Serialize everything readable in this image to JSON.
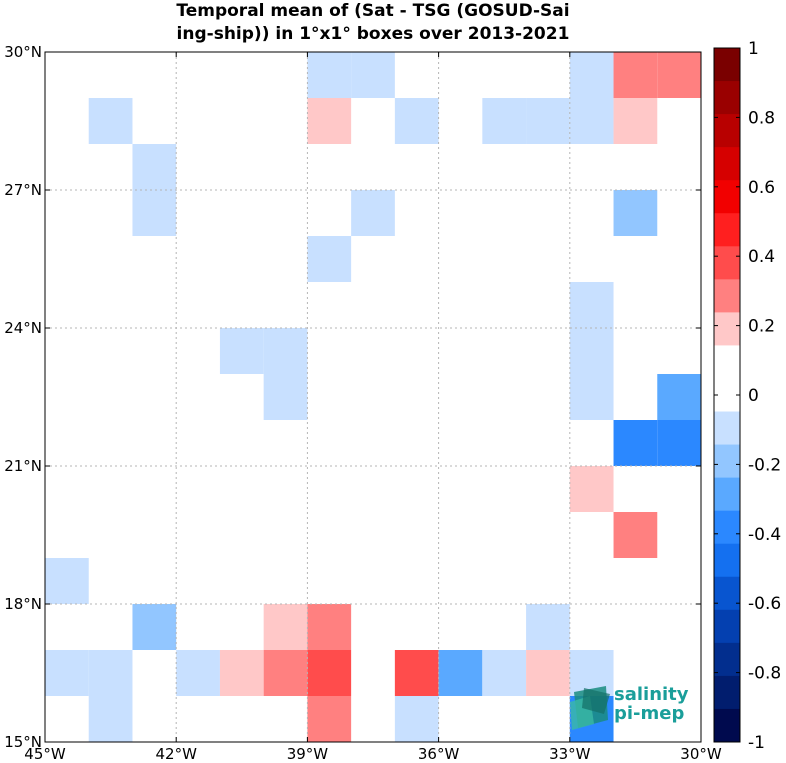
{
  "chart_data": {
    "type": "heatmap",
    "title_line1": "Temporal mean of (Sat - TSG (GOSUD-Sai",
    "title_line2": "ing-ship)) in 1°x1° boxes over 2013-2021",
    "lon_range": [
      -45,
      -30
    ],
    "lat_range": [
      15,
      30
    ],
    "x_ticks": [
      {
        "value": -45,
        "label": "45°W"
      },
      {
        "value": -42,
        "label": "42°W"
      },
      {
        "value": -39,
        "label": "39°W"
      },
      {
        "value": -36,
        "label": "36°W"
      },
      {
        "value": -33,
        "label": "33°W"
      },
      {
        "value": -30,
        "label": "30°W"
      }
    ],
    "y_ticks": [
      {
        "value": 15,
        "label": "15°N"
      },
      {
        "value": 18,
        "label": "18°N"
      },
      {
        "value": 21,
        "label": "21°N"
      },
      {
        "value": 24,
        "label": "24°N"
      },
      {
        "value": 27,
        "label": "27°N"
      },
      {
        "value": 30,
        "label": "30°N"
      }
    ],
    "grid": true,
    "colorbar": {
      "range": [
        -1,
        1
      ],
      "step": 0.1,
      "tick_labels": [
        "1",
        "0.8",
        "0.6",
        "0.4",
        "0.2",
        "0",
        "-0.2",
        "-0.4",
        "-0.6",
        "-0.8",
        "-1"
      ],
      "colors": [
        "#7a0000",
        "#9a0000",
        "#b80000",
        "#d60000",
        "#f20000",
        "#ff1f1f",
        "#ff4c4c",
        "#ff8080",
        "#ffc8c8",
        "#ffffff",
        "#ffffff",
        "#c8e0ff",
        "#92c6ff",
        "#5aa9ff",
        "#2b88ff",
        "#1470f0",
        "#0855d0",
        "#0440b0",
        "#022e8e",
        "#011d6e",
        "#000a4e"
      ]
    },
    "cells": [
      {
        "lon": -39,
        "lat": 29,
        "value": -0.12
      },
      {
        "lon": -38,
        "lat": 29,
        "value": -0.12
      },
      {
        "lon": -33,
        "lat": 29,
        "value": -0.12
      },
      {
        "lon": -32,
        "lat": 29,
        "value": 0.25
      },
      {
        "lon": -31,
        "lat": 29,
        "value": 0.25
      },
      {
        "lon": -44,
        "lat": 28,
        "value": -0.12
      },
      {
        "lon": -39,
        "lat": 28,
        "value": 0.15
      },
      {
        "lon": -37,
        "lat": 28,
        "value": -0.12
      },
      {
        "lon": -35,
        "lat": 28,
        "value": -0.12
      },
      {
        "lon": -34,
        "lat": 28,
        "value": -0.12
      },
      {
        "lon": -33,
        "lat": 28,
        "value": -0.12
      },
      {
        "lon": -32,
        "lat": 28,
        "value": 0.15
      },
      {
        "lon": -43,
        "lat": 27,
        "value": -0.12
      },
      {
        "lon": -43,
        "lat": 26,
        "value": -0.12
      },
      {
        "lon": -38,
        "lat": 26,
        "value": -0.12
      },
      {
        "lon": -32,
        "lat": 26,
        "value": -0.25
      },
      {
        "lon": -39,
        "lat": 25,
        "value": -0.12
      },
      {
        "lon": -33,
        "lat": 24,
        "value": -0.12
      },
      {
        "lon": -41,
        "lat": 23,
        "value": -0.12
      },
      {
        "lon": -40,
        "lat": 23,
        "value": -0.12
      },
      {
        "lon": -33,
        "lat": 23,
        "value": -0.12
      },
      {
        "lon": -40,
        "lat": 22,
        "value": -0.12
      },
      {
        "lon": -33,
        "lat": 22,
        "value": -0.12
      },
      {
        "lon": -31,
        "lat": 22,
        "value": -0.35
      },
      {
        "lon": -32,
        "lat": 21,
        "value": -0.45
      },
      {
        "lon": -31,
        "lat": 21,
        "value": -0.45
      },
      {
        "lon": -33,
        "lat": 20,
        "value": 0.15
      },
      {
        "lon": -32,
        "lat": 19,
        "value": 0.25
      },
      {
        "lon": -45,
        "lat": 18,
        "value": -0.12
      },
      {
        "lon": -43,
        "lat": 17,
        "value": -0.25
      },
      {
        "lon": -40,
        "lat": 17,
        "value": 0.15
      },
      {
        "lon": -39,
        "lat": 17,
        "value": 0.25
      },
      {
        "lon": -34,
        "lat": 17,
        "value": -0.12
      },
      {
        "lon": -45,
        "lat": 16,
        "value": -0.12
      },
      {
        "lon": -44,
        "lat": 16,
        "value": -0.12
      },
      {
        "lon": -42,
        "lat": 16,
        "value": -0.12
      },
      {
        "lon": -41,
        "lat": 16,
        "value": 0.15
      },
      {
        "lon": -40,
        "lat": 16,
        "value": 0.25
      },
      {
        "lon": -39,
        "lat": 16,
        "value": 0.35
      },
      {
        "lon": -37,
        "lat": 16,
        "value": 0.35
      },
      {
        "lon": -36,
        "lat": 16,
        "value": -0.35
      },
      {
        "lon": -35,
        "lat": 16,
        "value": -0.12
      },
      {
        "lon": -34,
        "lat": 16,
        "value": 0.15
      },
      {
        "lon": -33,
        "lat": 16,
        "value": -0.12
      },
      {
        "lon": -44,
        "lat": 15,
        "value": -0.12
      },
      {
        "lon": -39,
        "lat": 15,
        "value": 0.25
      },
      {
        "lon": -37,
        "lat": 15,
        "value": -0.12
      },
      {
        "lon": -33,
        "lat": 15,
        "value": -0.45
      }
    ]
  },
  "logo": {
    "line1": "salinity",
    "line2": "pi-mep"
  }
}
